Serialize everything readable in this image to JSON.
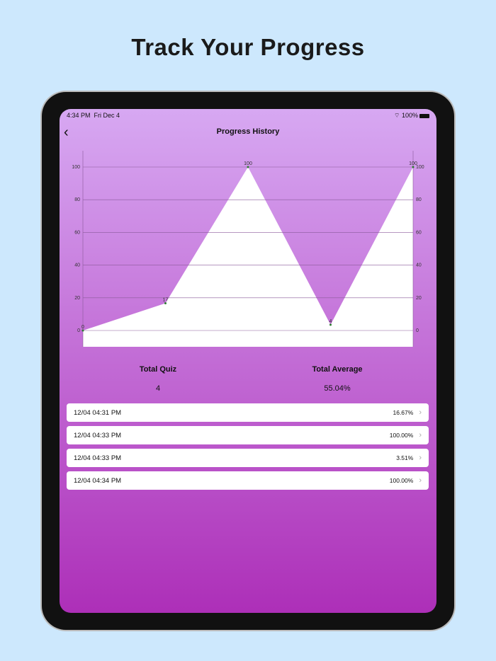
{
  "headline": "Track Your Progress",
  "status": {
    "time": "4:34 PM",
    "date": "Fri Dec 4",
    "battery": "100%"
  },
  "nav": {
    "title": "Progress History"
  },
  "chart_data": {
    "type": "area",
    "x": [
      0,
      1,
      2,
      3,
      4
    ],
    "values": [
      0,
      16.67,
      100,
      3.51,
      100
    ],
    "point_labels": [
      "0",
      "17",
      "100",
      "4",
      "100"
    ],
    "yticks": [
      "0",
      "20",
      "40",
      "60",
      "80",
      "100"
    ],
    "ylim": [
      0,
      100
    ],
    "grid": true,
    "fill_color": "#ffffff",
    "point_color": "#2e7d32"
  },
  "stats": {
    "total_quiz_label": "Total Quiz",
    "total_quiz": "4",
    "total_average_label": "Total Average",
    "total_average": "55.04%"
  },
  "history": [
    {
      "date": "12/04 04:31 PM",
      "score": "16.67%"
    },
    {
      "date": "12/04 04:33 PM",
      "score": "100.00%"
    },
    {
      "date": "12/04 04:33 PM",
      "score": "3.51%"
    },
    {
      "date": "12/04 04:34 PM",
      "score": "100.00%"
    }
  ]
}
